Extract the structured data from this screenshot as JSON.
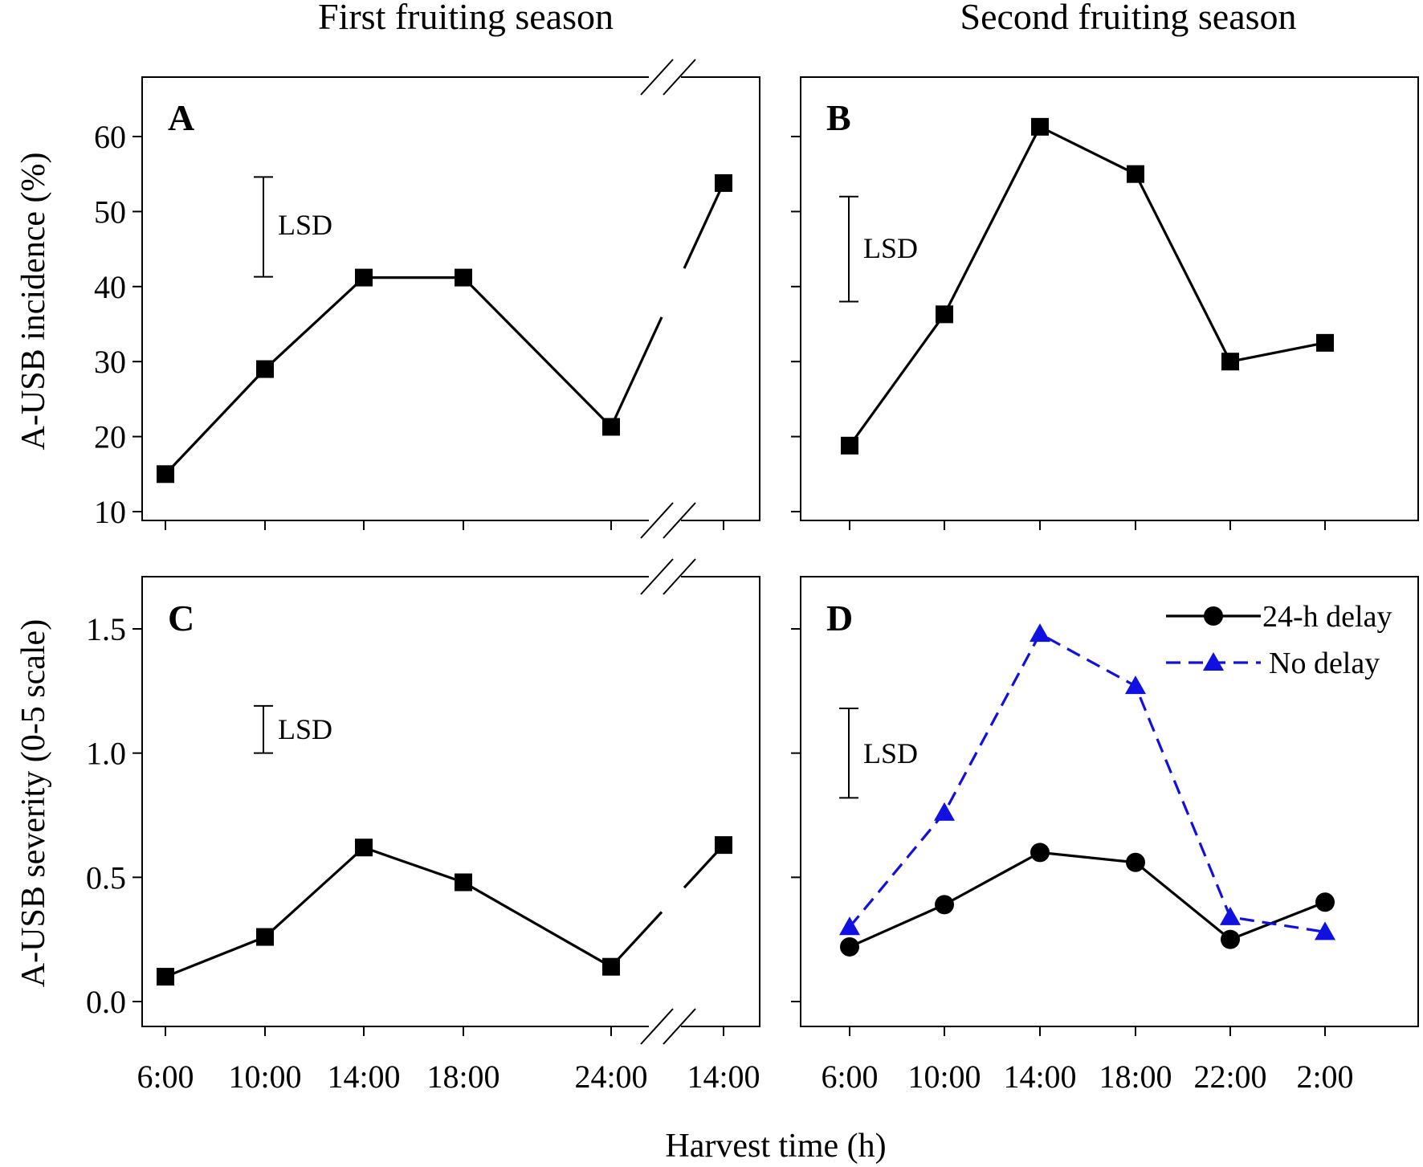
{
  "figure": {
    "col_titles": [
      "First fruiting season",
      "Second fruiting season"
    ],
    "xlabel": "Harvest time (h)",
    "ylabel_top": "A-USB incidence (%)",
    "ylabel_bottom": "A-USB severity (0-5 scale)",
    "lsd_label": "LSD"
  },
  "chart_data": [
    {
      "panel": "A",
      "type": "line",
      "marker": "square",
      "x_categories": [
        "6:00",
        "10:00",
        "14:00",
        "18:00",
        "24:00",
        "14:00"
      ],
      "axis_break_after": "24:00",
      "ylim": [
        10,
        65
      ],
      "yticks": [
        10,
        20,
        30,
        40,
        50,
        60
      ],
      "series": [
        {
          "values": [
            15.0,
            29.0,
            41.2,
            41.2,
            21.3,
            53.8
          ],
          "color": "#000000",
          "dash": false
        }
      ],
      "lsd": {
        "low": 41.3,
        "high": 54.6
      }
    },
    {
      "panel": "B",
      "type": "line",
      "marker": "square",
      "x_categories": [
        "6:00",
        "10:00",
        "14:00",
        "18:00",
        "22:00",
        "2:00"
      ],
      "ylim": [
        10,
        65
      ],
      "yticks": [
        10,
        20,
        30,
        40,
        50,
        60
      ],
      "series": [
        {
          "values": [
            18.8,
            36.3,
            61.3,
            55.0,
            30.0,
            32.5
          ],
          "color": "#000000",
          "dash": false
        }
      ],
      "lsd": {
        "low": 38.0,
        "high": 52.0
      }
    },
    {
      "panel": "C",
      "type": "line",
      "marker": "square",
      "x_categories": [
        "6:00",
        "10:00",
        "14:00",
        "18:00",
        "24:00",
        "14:00"
      ],
      "axis_break_after": "24:00",
      "ylim": [
        0,
        1.7
      ],
      "yticks": [
        0.0,
        0.5,
        1.0,
        1.5
      ],
      "ytick_labels": [
        "0.0",
        "0.5",
        "1.0",
        "1.5"
      ],
      "series": [
        {
          "values": [
            0.1,
            0.26,
            0.62,
            0.48,
            0.14,
            0.63
          ],
          "color": "#000000",
          "dash": false
        }
      ],
      "lsd": {
        "low": 1.0,
        "high": 1.19
      }
    },
    {
      "panel": "D",
      "type": "line",
      "x_categories": [
        "6:00",
        "10:00",
        "14:00",
        "18:00",
        "22:00",
        "2:00"
      ],
      "ylim": [
        0,
        1.7
      ],
      "yticks": [
        0.0,
        0.5,
        1.0,
        1.5
      ],
      "legend": "top-right",
      "series": [
        {
          "name": "24-h delay",
          "values": [
            0.22,
            0.39,
            0.6,
            0.56,
            0.25,
            0.4
          ],
          "color": "#000000",
          "dash": false,
          "marker": "circle"
        },
        {
          "name": "No delay",
          "values": [
            0.3,
            0.76,
            1.48,
            1.27,
            0.34,
            0.28
          ],
          "color": "#1010e0",
          "dash": true,
          "marker": "triangle"
        }
      ],
      "lsd": {
        "low": 0.82,
        "high": 1.18
      }
    }
  ]
}
